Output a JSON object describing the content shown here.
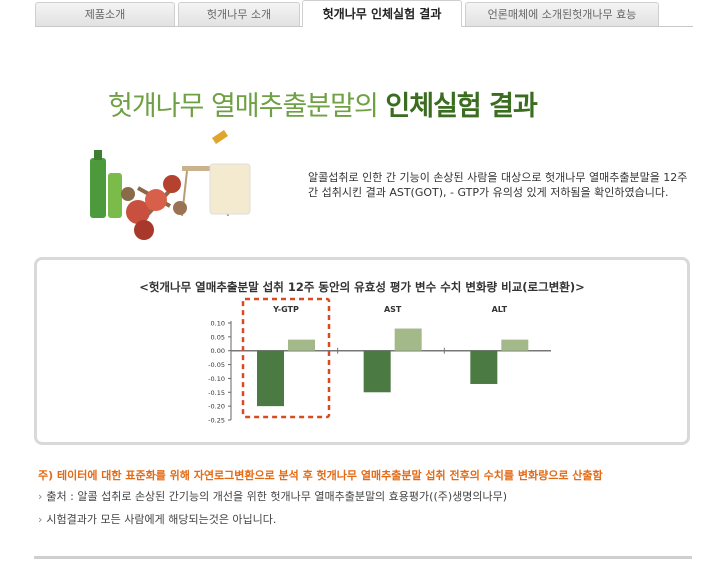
{
  "tabs": [
    {
      "label": "제품소개",
      "active": false
    },
    {
      "label": "헛개나무 소개",
      "active": false
    },
    {
      "label": "헛개나무 인체실험 결과",
      "active": true
    },
    {
      "label": "언론매체에 소개된헛개나무 효능",
      "active": false
    }
  ],
  "headline": {
    "part1": "헛개나무 열매추출분말의 ",
    "part2": "인체실험 결과"
  },
  "description": "알콜섭취로 인한 간 기능이 손상된 사람을 대상으로 헛개나무 열매추출분말을 12주간 섭취시킨 결과 AST(GOT), - GTP가 유의성 있게 저하됨을 확인하였습니다.",
  "chart_title": "<헛개나무 열매추출분말 섭취 12주 동안의 유효성 평가 변수 수치 변화량 비교(로그변환)>",
  "chart_data": {
    "type": "bar",
    "categories": [
      "Y-GTP",
      "AST",
      "ALT"
    ],
    "highlight": "Y-GTP",
    "series": [
      {
        "values": [
          -0.2,
          -0.15,
          -0.12
        ],
        "color": "#4b7a43"
      },
      {
        "values": [
          0.04,
          0.08,
          0.04
        ],
        "color": "#a3b98a"
      }
    ],
    "ylim": [
      -0.25,
      0.1
    ],
    "yticks": [
      "0.10",
      "0.05",
      "0.00",
      "-0.05",
      "-0.10",
      "-0.15",
      "-0.20",
      "-0.25"
    ]
  },
  "notes": {
    "head": "주) 테이터에 대한 표준화를 위해 자연로그변환으로 분석 후 헛개나무 열매추출분말 섭취 전후의 수치를 변화량으로 산출함",
    "items": [
      "출처 : 알콜 섭취로 손상된 간기능의 개선을 위한 헛개나무 열매추출분말의 효용평가((주)생명의나무)",
      "시험결과가 모든 사람에게 해당되는것은 아닙니다."
    ]
  }
}
